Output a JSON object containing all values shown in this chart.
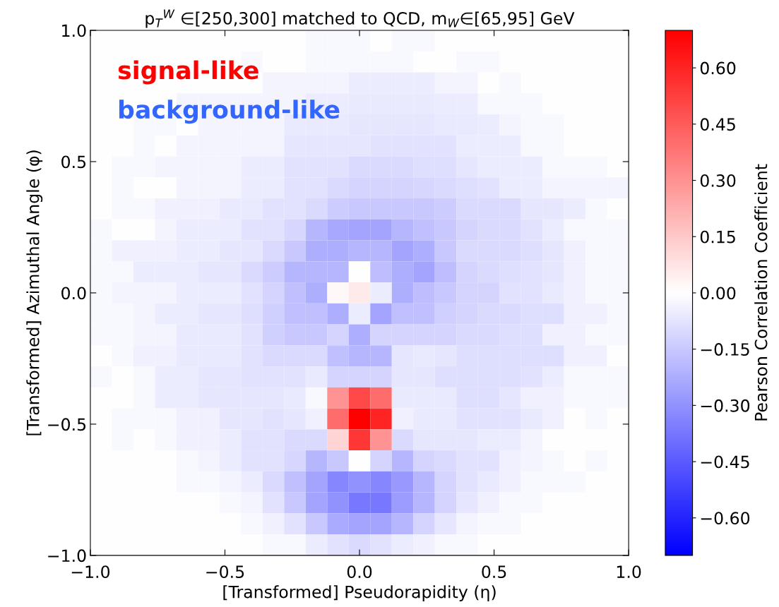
{
  "chart_data": {
    "type": "heatmap",
    "title": "p$_{T}$$^{W}$ ∈[250,300] matched to QCD, m$_{W}$∈[65,95] GeV",
    "xlabel": "[Transformed] Pseudorapidity (η)",
    "ylabel": "[Transformed] Azimuthal Angle (φ)",
    "clabel": "Pearson Correlation Coefficient",
    "annotations": [
      "signal-like",
      "background-like"
    ],
    "x": [
      -0.96,
      -0.88,
      -0.8,
      -0.72,
      -0.64,
      -0.56,
      -0.48,
      -0.4,
      -0.32,
      -0.24,
      -0.16,
      -0.08,
      0.0,
      0.08,
      0.16,
      0.24,
      0.32,
      0.4,
      0.48,
      0.56,
      0.64,
      0.72,
      0.8,
      0.88,
      0.96
    ],
    "y": [
      0.96,
      0.88,
      0.8,
      0.72,
      0.64,
      0.56,
      0.48,
      0.4,
      0.32,
      0.24,
      0.16,
      0.08,
      0.0,
      -0.08,
      -0.16,
      -0.24,
      -0.32,
      -0.4,
      -0.48,
      -0.56,
      -0.64,
      -0.72,
      -0.8,
      -0.88,
      -0.96
    ],
    "xlim": [
      -1.0,
      1.0
    ],
    "ylim": [
      -1.0,
      1.0
    ],
    "xticks": [
      {
        "value": -1.0,
        "label": "−1.0"
      },
      {
        "value": -0.5,
        "label": "−0.5"
      },
      {
        "value": 0.0,
        "label": "0.0"
      },
      {
        "value": 0.5,
        "label": "0.5"
      },
      {
        "value": 1.0,
        "label": "1.0"
      }
    ],
    "yticks": [
      {
        "value": -1.0,
        "label": "−1.0"
      },
      {
        "value": -0.5,
        "label": "−0.5"
      },
      {
        "value": 0.0,
        "label": "0.0"
      },
      {
        "value": 0.5,
        "label": "0.5"
      },
      {
        "value": 1.0,
        "label": "1.0"
      }
    ],
    "clim": [
      -0.7,
      0.7
    ],
    "cticks": [
      {
        "value": -0.6,
        "label": "−0.60"
      },
      {
        "value": -0.45,
        "label": "−0.45"
      },
      {
        "value": -0.3,
        "label": "−0.30"
      },
      {
        "value": -0.15,
        "label": "−0.15"
      },
      {
        "value": 0.0,
        "label": "0.00"
      },
      {
        "value": 0.15,
        "label": "0.15"
      },
      {
        "value": 0.3,
        "label": "0.30"
      },
      {
        "value": 0.45,
        "label": "0.45"
      },
      {
        "value": 0.6,
        "label": "0.60"
      }
    ],
    "grid": false,
    "cells": [
      [
        0,
        0,
        0,
        0,
        0,
        0,
        0,
        0,
        0,
        0,
        -0.02,
        -0.02,
        -0.02,
        0,
        -0.02,
        -0.02,
        0,
        0,
        0,
        0,
        0,
        0,
        0,
        0,
        0
      ],
      [
        0,
        0,
        0,
        0,
        0,
        0,
        0,
        -0.02,
        0,
        0,
        -0.02,
        -0.02,
        -0.02,
        -0.02,
        -0.02,
        0,
        0,
        -0.02,
        -0.02,
        0,
        0,
        0,
        0,
        0,
        0
      ],
      [
        0,
        0,
        0,
        0,
        0,
        0,
        0,
        0,
        -0.03,
        -0.03,
        -0.03,
        -0.03,
        -0.05,
        -0.05,
        -0.05,
        -0.05,
        -0.03,
        -0.03,
        0,
        -0.02,
        0,
        0,
        0,
        0,
        0
      ],
      [
        0,
        0,
        0,
        0,
        -0.03,
        -0.03,
        -0.03,
        -0.03,
        -0.03,
        -0.03,
        -0.05,
        -0.05,
        -0.06,
        -0.06,
        -0.06,
        -0.06,
        -0.05,
        -0.05,
        -0.02,
        -0.02,
        -0.02,
        0,
        0,
        0,
        0
      ],
      [
        0,
        0,
        -0.02,
        -0.02,
        0,
        -0.03,
        -0.03,
        -0.03,
        -0.03,
        -0.06,
        -0.06,
        -0.06,
        -0.07,
        -0.07,
        -0.07,
        -0.07,
        -0.06,
        -0.06,
        -0.05,
        -0.03,
        -0.02,
        -0.02,
        0,
        0,
        0
      ],
      [
        0,
        0,
        -0.02,
        0,
        -0.03,
        -0.03,
        -0.03,
        -0.03,
        -0.03,
        -0.07,
        -0.07,
        -0.07,
        -0.07,
        -0.08,
        -0.08,
        -0.08,
        -0.08,
        -0.05,
        -0.05,
        -0.05,
        -0.02,
        -0.02,
        0,
        0,
        0
      ],
      [
        0,
        -0.02,
        -0.02,
        -0.03,
        -0.03,
        -0.03,
        -0.03,
        -0.05,
        -0.05,
        -0.08,
        -0.08,
        -0.08,
        -0.1,
        -0.1,
        -0.1,
        -0.09,
        -0.09,
        -0.07,
        -0.05,
        -0.05,
        -0.05,
        -0.02,
        -0.02,
        -0.02,
        0
      ],
      [
        0,
        -0.02,
        0,
        0,
        -0.03,
        -0.03,
        -0.03,
        -0.05,
        -0.05,
        -0.08,
        -0.08,
        -0.1,
        -0.12,
        -0.12,
        -0.12,
        -0.11,
        -0.1,
        -0.09,
        -0.08,
        -0.05,
        -0.05,
        -0.03,
        -0.03,
        -0.03,
        -0.03
      ],
      [
        0,
        -0.02,
        -0.02,
        -0.04,
        -0.04,
        -0.04,
        -0.06,
        -0.06,
        -0.08,
        -0.08,
        -0.1,
        -0.14,
        -0.15,
        -0.15,
        -0.15,
        -0.15,
        -0.14,
        -0.1,
        -0.1,
        -0.1,
        -0.07,
        -0.07,
        -0.05,
        -0.02,
        0
      ],
      [
        -0.02,
        0,
        0,
        -0.03,
        -0.05,
        -0.05,
        -0.05,
        -0.08,
        -0.08,
        -0.11,
        -0.2,
        -0.24,
        -0.25,
        -0.25,
        -0.2,
        -0.17,
        -0.15,
        -0.12,
        -0.1,
        -0.1,
        -0.08,
        -0.05,
        -0.02,
        -0.02,
        -0.02
      ],
      [
        -0.02,
        -0.04,
        -0.04,
        -0.04,
        -0.05,
        -0.05,
        -0.07,
        -0.07,
        -0.1,
        -0.15,
        -0.22,
        -0.22,
        -0.2,
        -0.2,
        -0.25,
        -0.22,
        -0.15,
        -0.1,
        -0.1,
        -0.1,
        -0.09,
        -0.07,
        -0.04,
        -0.02,
        -0.02
      ],
      [
        -0.02,
        -0.02,
        -0.05,
        -0.05,
        -0.05,
        -0.07,
        -0.07,
        -0.1,
        -0.14,
        -0.2,
        -0.2,
        -0.2,
        0,
        -0.18,
        -0.22,
        -0.25,
        -0.18,
        -0.12,
        -0.1,
        -0.09,
        -0.08,
        -0.07,
        -0.04,
        -0.02,
        -0.02
      ],
      [
        -0.02,
        -0.03,
        -0.03,
        -0.03,
        -0.05,
        -0.05,
        -0.05,
        -0.08,
        -0.12,
        -0.17,
        -0.22,
        0.02,
        0.06,
        -0.05,
        -0.22,
        -0.18,
        -0.15,
        -0.12,
        -0.12,
        -0.08,
        -0.08,
        -0.06,
        -0.04,
        -0.02,
        -0.02
      ],
      [
        -0.02,
        -0.02,
        -0.03,
        -0.05,
        -0.05,
        -0.07,
        -0.07,
        -0.09,
        -0.13,
        -0.17,
        -0.17,
        -0.22,
        -0.05,
        -0.25,
        -0.17,
        -0.17,
        -0.13,
        -0.12,
        -0.1,
        -0.1,
        -0.09,
        -0.09,
        -0.04,
        -0.04,
        -0.02
      ],
      [
        -0.02,
        -0.02,
        -0.03,
        -0.03,
        -0.06,
        -0.06,
        -0.06,
        -0.08,
        -0.13,
        -0.15,
        -0.15,
        -0.12,
        -0.22,
        -0.12,
        -0.12,
        -0.12,
        -0.12,
        -0.1,
        -0.1,
        -0.09,
        -0.09,
        -0.04,
        -0.04,
        -0.02,
        -0.02
      ],
      [
        0,
        -0.02,
        -0.04,
        -0.04,
        -0.06,
        -0.06,
        -0.06,
        -0.08,
        -0.1,
        -0.1,
        -0.1,
        -0.17,
        -0.2,
        -0.2,
        -0.07,
        -0.06,
        -0.07,
        -0.09,
        -0.09,
        -0.09,
        -0.09,
        -0.09,
        -0.04,
        -0.04,
        0
      ],
      [
        -0.02,
        0,
        -0.02,
        -0.05,
        -0.05,
        -0.07,
        -0.07,
        -0.08,
        -0.08,
        -0.08,
        -0.06,
        -0.12,
        -0.12,
        -0.12,
        -0.07,
        -0.07,
        -0.09,
        -0.09,
        -0.09,
        -0.09,
        -0.08,
        -0.05,
        -0.02,
        -0.02,
        -0.02
      ],
      [
        0,
        0,
        -0.02,
        -0.05,
        -0.05,
        -0.07,
        -0.07,
        -0.07,
        -0.07,
        -0.06,
        -0.02,
        0.3,
        0.5,
        0.4,
        -0.06,
        -0.06,
        -0.06,
        -0.09,
        -0.09,
        -0.07,
        -0.04,
        -0.04,
        -0.02,
        -0.02,
        -0.02
      ],
      [
        0,
        -0.02,
        -0.02,
        -0.02,
        -0.04,
        -0.04,
        -0.07,
        -0.07,
        -0.08,
        -0.07,
        -0.04,
        0.4,
        0.7,
        0.6,
        -0.04,
        -0.06,
        -0.06,
        -0.08,
        -0.08,
        -0.08,
        -0.06,
        -0.04,
        0,
        -0.02,
        0
      ],
      [
        0,
        -0.02,
        0,
        -0.02,
        -0.04,
        -0.04,
        -0.05,
        -0.08,
        -0.08,
        -0.1,
        -0.1,
        0.12,
        0.55,
        0.3,
        -0.1,
        -0.07,
        -0.07,
        -0.07,
        -0.05,
        -0.05,
        -0.03,
        0,
        0,
        0,
        0
      ],
      [
        0,
        0,
        0,
        0,
        -0.02,
        -0.03,
        -0.05,
        -0.08,
        -0.08,
        -0.11,
        -0.2,
        -0.15,
        0,
        -0.12,
        -0.2,
        -0.12,
        -0.1,
        -0.08,
        -0.08,
        -0.04,
        -0.03,
        -0.02,
        0,
        -0.02,
        0
      ],
      [
        0,
        0,
        0,
        0,
        -0.02,
        -0.02,
        -0.03,
        -0.05,
        -0.1,
        -0.17,
        -0.25,
        -0.33,
        -0.3,
        -0.33,
        -0.28,
        -0.2,
        -0.12,
        -0.08,
        -0.06,
        -0.04,
        -0.02,
        -0.02,
        -0.02,
        0,
        0
      ],
      [
        0,
        0,
        0,
        0,
        0,
        0,
        -0.02,
        -0.03,
        -0.08,
        -0.15,
        -0.25,
        -0.3,
        -0.37,
        -0.37,
        -0.27,
        -0.2,
        -0.12,
        -0.07,
        -0.04,
        -0.02,
        -0.02,
        0,
        0,
        0,
        0
      ],
      [
        0,
        0,
        0,
        0,
        0,
        0,
        0,
        -0.02,
        -0.04,
        -0.08,
        -0.15,
        -0.23,
        -0.25,
        -0.25,
        -0.2,
        -0.12,
        -0.07,
        -0.03,
        -0.02,
        -0.02,
        0,
        0,
        0,
        0,
        0
      ],
      [
        0,
        0,
        0,
        0,
        0,
        0,
        0,
        0,
        -0.02,
        -0.02,
        -0.05,
        -0.08,
        -0.1,
        -0.08,
        -0.05,
        -0.04,
        -0.02,
        -0.02,
        0,
        0,
        0,
        0,
        0,
        0,
        0
      ]
    ]
  }
}
